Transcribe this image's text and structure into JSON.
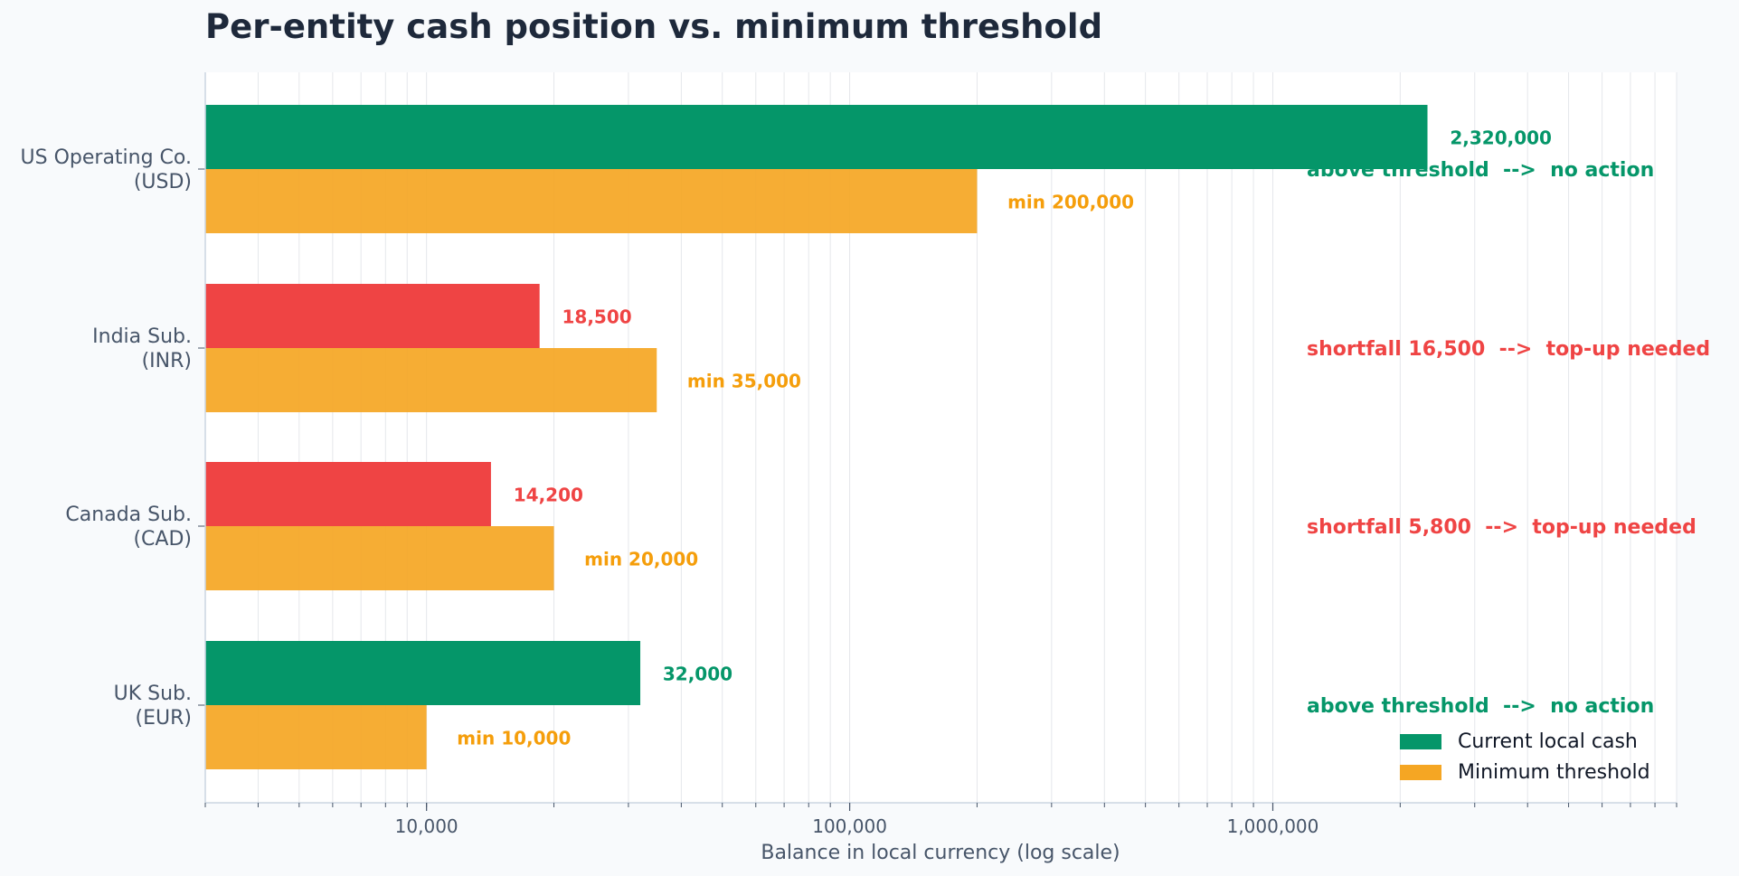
{
  "chart_data": {
    "type": "bar",
    "orientation": "horizontal",
    "title": "Per-entity cash position vs. minimum threshold",
    "xlabel": "Balance in local currency (log scale)",
    "x_scale": "log",
    "xlim": [
      3000,
      9000000
    ],
    "x_ticks": [
      {
        "value": 10000,
        "label": "10,000"
      },
      {
        "value": 100000,
        "label": "100,000"
      },
      {
        "value": 1000000,
        "label": "1,000,000"
      }
    ],
    "grid": true,
    "legend_position": "bottom-right",
    "categories": [
      "US Operating Co. (USD)",
      "India Sub. (INR)",
      "Canada Sub. (CAD)",
      "UK Sub. (EUR)"
    ],
    "category_label_lines": [
      [
        "US Operating Co.",
        "(USD)"
      ],
      [
        "India Sub.",
        "(INR)"
      ],
      [
        "Canada Sub.",
        "(CAD)"
      ],
      [
        "UK Sub.",
        "(EUR)"
      ]
    ],
    "series": [
      {
        "name": "Current local cash",
        "values": [
          2320000,
          18500,
          14200,
          32000
        ],
        "labels": [
          "2,320,000",
          "18,500",
          "14,200",
          "32,000"
        ]
      },
      {
        "name": "Minimum threshold",
        "values": [
          200000,
          35000,
          20000,
          10000
        ],
        "labels": [
          "min 200,000",
          "min 35,000",
          "min 20,000",
          "min 10,000"
        ]
      }
    ],
    "status": [
      {
        "text": "above threshold  -->  no action",
        "ok": true
      },
      {
        "text": "shortfall 16,500  -->  top-up needed",
        "ok": false
      },
      {
        "text": "shortfall 5,800  -->  top-up needed",
        "ok": false
      },
      {
        "text": "above threshold  -->  no action",
        "ok": true
      }
    ],
    "colors": {
      "above": "#059669",
      "below": "#ef4444",
      "threshold": "#f5a623",
      "threshold_label": "#f59e0b",
      "legend_current": "#059669",
      "title": "#1e293b",
      "axis_text": "#475569",
      "grid": "#e5e7eb"
    }
  }
}
